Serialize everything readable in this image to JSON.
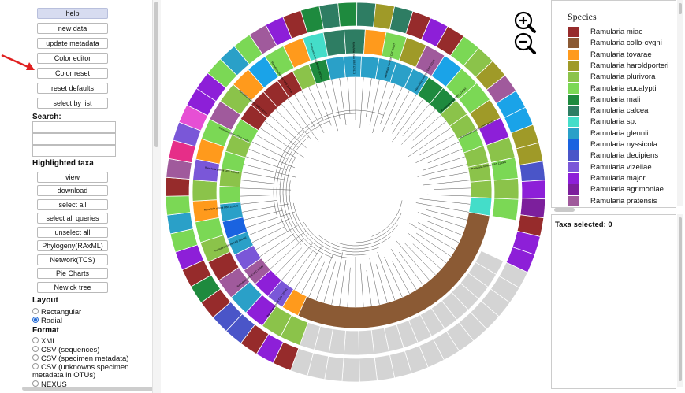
{
  "buttons": {
    "help": "help",
    "new_data": "new data",
    "update_metadata": "update metadata",
    "color_editor": "Color editor",
    "color_reset": "Color reset",
    "reset_defaults": "reset defaults",
    "select_by_list": "select by list"
  },
  "search": {
    "title": "Search:"
  },
  "highlighted": {
    "title": "Highlighted taxa",
    "view": "view",
    "download": "download",
    "select_all": "select all",
    "select_all_queries": "select all queries",
    "unselect_all": "unselect all",
    "phylogeny": "Phylogeny(RAxML)",
    "network": "Network(TCS)",
    "pie_charts": "Pie Charts",
    "newick": "Newick tree"
  },
  "layout": {
    "title": "Layout",
    "options": [
      "Rectangular",
      "Radial"
    ],
    "selected": "Radial"
  },
  "format": {
    "title": "Format",
    "options": [
      "XML",
      "CSV (sequences)",
      "CSV (specimen metadata)",
      "CSV (unknowns specimen metadata in OTUs)",
      "NEXUS"
    ]
  },
  "annotation": {
    "arrow_color": "#e02020"
  },
  "zoom": {
    "zoom_in_icon": "zoom-in-icon",
    "zoom_out_icon": "zoom-out-icon"
  },
  "legend": {
    "title": "Species",
    "items": [
      {
        "label": "Ramularia miae",
        "color": "#962b2b"
      },
      {
        "label": "Ramularia collo-cygni",
        "color": "#8b5a34"
      },
      {
        "label": "Ramularia tovarae",
        "color": "#ff9a1c"
      },
      {
        "label": "Ramularia haroldporteri",
        "color": "#9f9a28"
      },
      {
        "label": "Ramularia plurivora",
        "color": "#8bc34a"
      },
      {
        "label": "Ramularia eucalypti",
        "color": "#7bd855"
      },
      {
        "label": "Ramularia mali",
        "color": "#1e8a3e"
      },
      {
        "label": "Ramularia calcea",
        "color": "#2e7d63"
      },
      {
        "label": "Ramularia sp.",
        "color": "#44ddc9"
      },
      {
        "label": "Ramularia glennii",
        "color": "#2aa0c8"
      },
      {
        "label": "Ramularia nyssicola",
        "color": "#1a63e0"
      },
      {
        "label": "Ramularia decipiens",
        "color": "#4a55c8"
      },
      {
        "label": "Ramularia vizellae",
        "color": "#7a57d8"
      },
      {
        "label": "Ramularia major",
        "color": "#8d1fd8"
      },
      {
        "label": "Ramularia agrimoniae",
        "color": "#7c1f9c"
      },
      {
        "label": "Ramularia pratensis",
        "color": "#a05a9c"
      }
    ]
  },
  "taxa_selected": "Taxa selected: 0",
  "tree": {
    "outer_ring": [
      "#962b2b",
      "#8d1fd8",
      "#962b2b",
      "#4a55c8",
      "#4a55c8",
      "#962b2b",
      "#1e8a3e",
      "#962b2b",
      "#8d1fd8",
      "#7bd855",
      "#2aa0c8",
      "#7bd855",
      "#962b2b",
      "#a05a9c",
      "#e62e88",
      "#7a57d8",
      "#e64fd4",
      "#8d1fd8",
      "#8d1fd8",
      "#7bd855",
      "#2aa0c8",
      "#7bd855",
      "#a05a9c",
      "#8d1fd8",
      "#962b2b",
      "#1e8a3e",
      "#2e7d63",
      "#1e8a3e",
      "#2e7d63",
      "#9f9a28",
      "#2e7d63",
      "#962b2b",
      "#8d1fd8",
      "#962b2b",
      "#7bd855",
      "#8bc34a",
      "#9f9a28",
      "#a05a9c",
      "#1aa3e8",
      "#1aa3e8",
      "#9f9a28",
      "#9f9a28",
      "#4a55c8",
      "#8d1fd8",
      "#7c1f9c",
      "#962b2b",
      "#8d1fd8",
      "#8d1fd8"
    ],
    "middle_ring": [
      "#8bc34a",
      "#8bc34a",
      "#8d1fd8",
      "#2aa0c8",
      "#a05a9c",
      "#962b2b",
      "#8bc34a",
      "#7bd855",
      "#ff9a1c",
      "#8bc34a",
      "#7a57d8",
      "#ff9a1c",
      "#7bd855",
      "#a05a9c",
      "#8bc34a",
      "#ff9a1c",
      "#1aa3e8",
      "#7bd855",
      "#ff9a1c",
      "#44ddc9",
      "#2e7d63",
      "#2e7d63",
      "#ff9a1c",
      "#7bd855",
      "#9f9a28",
      "#a05a9c",
      "#1aa3e8",
      "#7bd855",
      "#7bd855",
      "#9f9a28",
      "#8d1fd8",
      "#8bc34a",
      "#7bd855",
      "#8bc34a",
      "#7bd855"
    ],
    "inner_ring": [
      "#ff9a1c",
      "#7a57d8",
      "#8d1fd8",
      "#a05a9c",
      "#7a57d8",
      "#2aa0c8",
      "#1a63e0",
      "#2aa0c8",
      "#7bd855",
      "#8bc34a",
      "#7bd855",
      "#8bc34a",
      "#7bd855",
      "#962b2b",
      "#962b2b",
      "#962b2b",
      "#962b2b",
      "#8bc34a",
      "#1e8a3e",
      "#2aa0c8",
      "#2aa0c8",
      "#2aa0c8",
      "#2aa0c8",
      "#2aa0c8",
      "#2aa0c8",
      "#1e8a3e",
      "#1e8a3e",
      "#8bc34a",
      "#8bc34a",
      "#7bd855",
      "#8bc34a",
      "#8bc34a",
      "#8bc34a",
      "#44ddc9"
    ],
    "leaf_labels": [
      "Ramularia glennii CBS 129441",
      "Ramularia glennii CPC 17945",
      "Ramularia glennii CBS 129442",
      "Ramularia glennii CBS 129440",
      "Ramularia glennii CBS 129439",
      "Ramularia glennii CPC 10566",
      "Ramularia plurivora CBS 118743",
      "Ramularia plurivora CBS 124746",
      "Ramularia eucalypti CBS 120726",
      "Ramularia miae CBS 120121",
      "Ramularia eucalypti CPC 23127",
      "Ramularia eucalypti CPC 23128",
      "Ramularia major CBS 124793",
      "Ramularia nyssicola CBS 127665",
      "Ramularia tovarae CBS 113305"
    ]
  }
}
